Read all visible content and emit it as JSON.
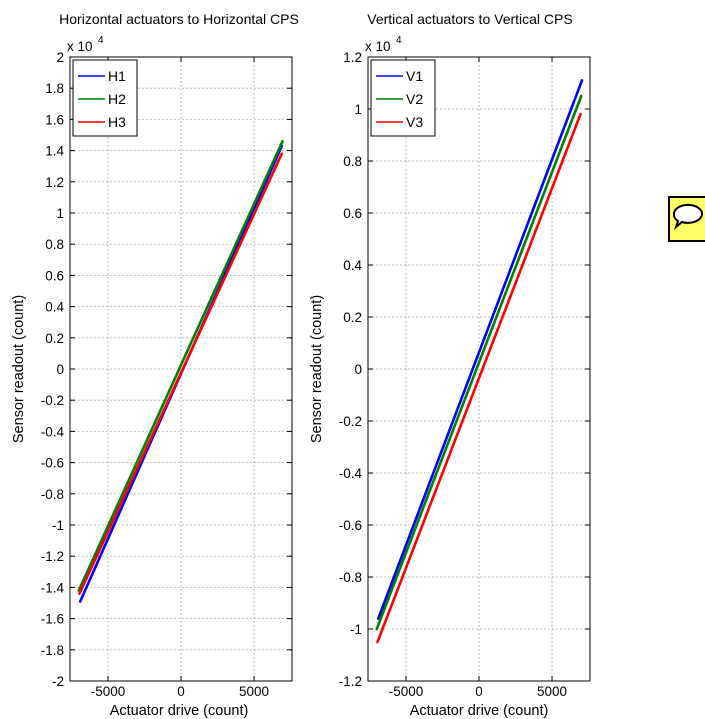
{
  "chart_data": [
    {
      "type": "line",
      "title": "Horizontal actuators to Horizontal CPS",
      "xlabel": "Actuator drive (count)",
      "ylabel": "Sensor readout (count)",
      "exponent": "x 10",
      "exponent_power": "4",
      "xlim": [
        -7600,
        7600
      ],
      "ylim": [
        -2,
        2
      ],
      "xticks": [
        -5000,
        0,
        5000
      ],
      "xtick_labels": [
        "-5000",
        "0",
        "5000"
      ],
      "yticks": [
        2,
        1.8,
        1.6,
        1.4,
        1.2,
        1,
        0.8,
        0.6,
        0.4,
        0.2,
        0,
        -0.2,
        -0.4,
        -0.6,
        -0.8,
        -1,
        -1.2,
        -1.4,
        -1.6,
        -1.8,
        -2
      ],
      "ytick_labels": [
        "2",
        "1.8",
        "1.6",
        "1.4",
        "1.2",
        "1",
        "0.8",
        "0.6",
        "0.4",
        "0.2",
        "0",
        "-0.2",
        "-0.4",
        "-0.6",
        "-0.8",
        "-1",
        "-1.2",
        "-1.4",
        "-1.6",
        "-1.8",
        "-2"
      ],
      "grid": true,
      "legend_position": "top-left",
      "series": [
        {
          "name": "H1",
          "color": "#0000ff",
          "x": [
            -6900,
            6900
          ],
          "y": [
            -1.49,
            1.43
          ]
        },
        {
          "name": "H2",
          "color": "#008000",
          "x": [
            -7000,
            6950
          ],
          "y": [
            -1.42,
            1.46
          ]
        },
        {
          "name": "H3",
          "color": "#ff0000",
          "x": [
            -6950,
            6900
          ],
          "y": [
            -1.44,
            1.38
          ]
        }
      ]
    },
    {
      "type": "line",
      "title": "Vertical actuators to Vertical CPS",
      "xlabel": "Actuator drive (count)",
      "ylabel": "Sensor readout (count)",
      "exponent": "x 10",
      "exponent_power": "4",
      "xlim": [
        -7600,
        7600
      ],
      "ylim": [
        -1.2,
        1.2
      ],
      "xticks": [
        -5000,
        0,
        5000
      ],
      "xtick_labels": [
        "-5000",
        "0",
        "5000"
      ],
      "yticks": [
        1.2,
        1,
        0.8,
        0.6,
        0.4,
        0.2,
        0,
        -0.2,
        -0.4,
        -0.6,
        -0.8,
        -1,
        -1.2
      ],
      "ytick_labels": [
        "1.2",
        "1",
        "0.8",
        "0.6",
        "0.4",
        "0.2",
        "0",
        "-0.2",
        "-0.4",
        "-0.6",
        "-0.8",
        "-1",
        "-1.2"
      ],
      "grid": true,
      "legend_position": "top-left",
      "series": [
        {
          "name": "V1",
          "color": "#0000ff",
          "x": [
            -6900,
            7050
          ],
          "y": [
            -0.96,
            1.11
          ]
        },
        {
          "name": "V2",
          "color": "#008000",
          "x": [
            -7000,
            7000
          ],
          "y": [
            -1.0,
            1.05
          ]
        },
        {
          "name": "V3",
          "color": "#ff0000",
          "x": [
            -6950,
            6950
          ],
          "y": [
            -1.05,
            0.98
          ]
        }
      ]
    }
  ],
  "side_icon": {
    "name": "speech-bubble-icon",
    "border_color": "#000000",
    "fill_color": "#ffff66"
  }
}
